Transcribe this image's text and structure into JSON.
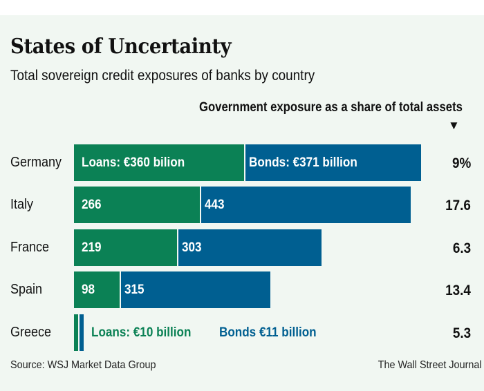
{
  "chart_data": {
    "type": "bar",
    "orientation": "horizontal",
    "stacked": true,
    "title": "States of Uncertainty",
    "subtitle": "Total sovereign credit exposures of banks by country",
    "categories": [
      "Germany",
      "Italy",
      "France",
      "Spain",
      "Greece"
    ],
    "series": [
      {
        "name": "Loans",
        "color": "#0b8155",
        "values": [
          360,
          266,
          219,
          98,
          10
        ]
      },
      {
        "name": "Bonds",
        "color": "#005f91",
        "values": [
          371,
          443,
          303,
          315,
          11
        ]
      }
    ],
    "value_unit": "€ billion",
    "bar_labels": {
      "loans": [
        "Loans: €360 bilion",
        "266",
        "219",
        "98",
        "Loans: €10 billion"
      ],
      "bonds": [
        "Bonds: €371 billion",
        "443",
        "303",
        "315",
        "Bonds €11 billion"
      ]
    },
    "share_column": {
      "title": "Government exposure as a share of total assets",
      "arrow": "▼",
      "values": [
        9,
        17.6,
        6.3,
        13.4,
        5.3
      ],
      "labels": [
        "9%",
        "17.6",
        "6.3",
        "13.4",
        "5.3"
      ]
    },
    "xlim": [
      0,
      731
    ],
    "grid": false,
    "legend": "inline"
  },
  "footer": {
    "source": "Source: WSJ Market Data Group",
    "credit": "The Wall Street Journal"
  }
}
